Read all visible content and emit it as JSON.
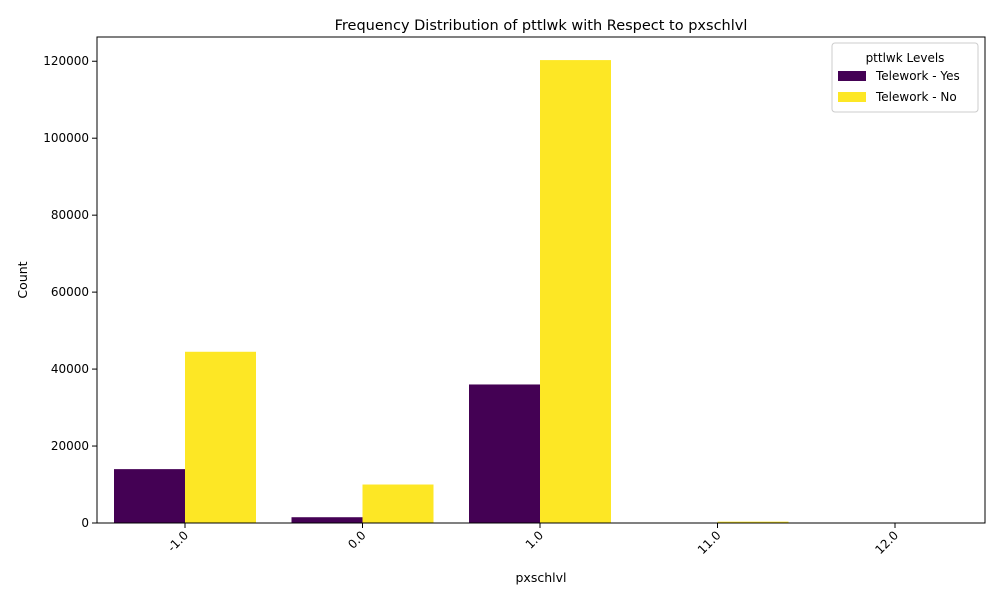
{
  "chart_data": {
    "type": "bar",
    "title": "Frequency Distribution of pttlwk with Respect to pxschlvl",
    "xlabel": "pxschlvl",
    "ylabel": "Count",
    "categories": [
      "-1.0",
      "0.0",
      "1.0",
      "11.0",
      "12.0"
    ],
    "series": [
      {
        "name": "Telework - Yes",
        "color": "#440154",
        "values": [
          14000,
          1500,
          36000,
          0,
          0
        ]
      },
      {
        "name": "Telework - No",
        "color": "#FDE725",
        "values": [
          44500,
          10000,
          120300,
          350,
          30
        ]
      }
    ],
    "ylim": [
      0,
      126300
    ],
    "yticks": [
      0,
      20000,
      40000,
      60000,
      80000,
      100000,
      120000
    ],
    "legend": {
      "title": "pttlwk Levels",
      "placement": "top-right"
    },
    "grid": false
  }
}
